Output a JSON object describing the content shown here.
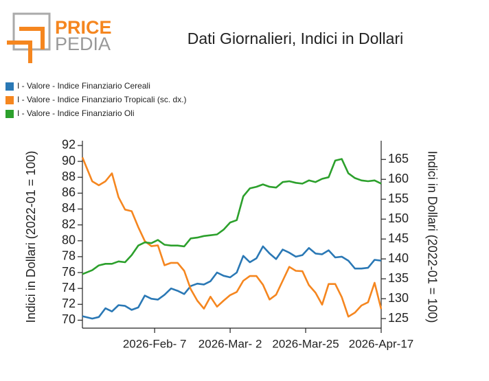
{
  "logo": {
    "line1": "PRICE",
    "line2": "PEDIA"
  },
  "chart_data": {
    "type": "line",
    "title": "Dati Giornalieri, Indici in Dollari",
    "y_label": "Indici in Dollari (2022-01 = 100)",
    "y2_label": "Indici in Dollari (2022-01 = 100)",
    "x": [
      "2026-01-16",
      "2026-01-19",
      "2026-01-21",
      "2026-01-23",
      "2026-01-25",
      "2026-01-27",
      "2026-01-29",
      "2026-01-31",
      "2026-02-02",
      "2026-02-04",
      "2026-02-06",
      "2026-02-08",
      "2026-02-10",
      "2026-02-12",
      "2026-02-14",
      "2026-02-16",
      "2026-02-18",
      "2026-02-20",
      "2026-02-22",
      "2026-02-24",
      "2026-02-26",
      "2026-02-28",
      "2026-03-02",
      "2026-03-04",
      "2026-03-06",
      "2026-03-08",
      "2026-03-10",
      "2026-03-12",
      "2026-03-14",
      "2026-03-16",
      "2026-03-18",
      "2026-03-20",
      "2026-03-22",
      "2026-03-24",
      "2026-03-26",
      "2026-03-28",
      "2026-03-30",
      "2026-04-01",
      "2026-04-03",
      "2026-04-05",
      "2026-04-07",
      "2026-04-09",
      "2026-04-11",
      "2026-04-13",
      "2026-04-15",
      "2026-04-17"
    ],
    "xlim": [
      "2026-01-16",
      "2026-04-17"
    ],
    "xticks": [
      {
        "value": "2026-02-07",
        "label": "2026-Feb- 7"
      },
      {
        "value": "2026-03-02",
        "label": "2026-Mar- 2"
      },
      {
        "value": "2026-03-25",
        "label": "2026-Mar-25"
      },
      {
        "value": "2026-04-17",
        "label": "2026-Apr-17"
      }
    ],
    "ylim": [
      69,
      92.6
    ],
    "yticks": [
      70,
      72,
      74,
      76,
      78,
      80,
      82,
      84,
      86,
      88,
      90,
      92
    ],
    "y2lim": [
      122.6,
      169.7
    ],
    "y2ticks": [
      125,
      130,
      135,
      140,
      145,
      150,
      155,
      160,
      165
    ],
    "legend": "top-left",
    "series": [
      {
        "name": "I - Valore - Indice Finanziario Cereali",
        "color": "#2a78b5",
        "values": [
          70.5,
          70.2,
          70.4,
          71.5,
          71.1,
          71.9,
          71.8,
          71.3,
          71.6,
          73.1,
          72.7,
          72.6,
          73.2,
          74.0,
          73.7,
          73.3,
          74.3,
          74.6,
          74.5,
          74.9,
          76.0,
          75.6,
          75.4,
          76.0,
          78.1,
          77.3,
          77.8,
          79.3,
          78.4,
          77.7,
          78.9,
          78.5,
          78.0,
          78.2,
          79.1,
          78.4,
          78.3,
          78.8,
          77.9,
          78.0,
          77.5,
          76.5,
          76.5,
          76.6,
          77.6,
          77.5
        ]
      },
      {
        "name": "I - Valore - Indice Finanziario Tropicali (sc. dx.)",
        "color": "#f5861f",
        "axis": "y2",
        "values": [
          165.5,
          159.5,
          158.5,
          159.5,
          161.5,
          155.5,
          152.4,
          152.0,
          148,
          144.5,
          143.2,
          143.4,
          138.4,
          139,
          139,
          137,
          132.4,
          129.5,
          127.5,
          130.5,
          128,
          129.5,
          130.9,
          131.7,
          134.5,
          135.7,
          135.7,
          133.5,
          129.8,
          131,
          134.5,
          138,
          137,
          136.9,
          133.4,
          131.5,
          128.5,
          133.7,
          133.7,
          130.4,
          125.5,
          126.5,
          128.3,
          129.1,
          134,
          127.4
        ]
      },
      {
        "name": "I - Valore - Indice Finanziario Oli",
        "color": "#2ca02c",
        "values": [
          75.8,
          76.3,
          76.9,
          77.1,
          77.1,
          77.4,
          77.3,
          78.2,
          79.4,
          79.8,
          79.7,
          80.1,
          79.5,
          79.4,
          79.4,
          79.3,
          80.3,
          80.4,
          80.6,
          80.7,
          80.8,
          81.4,
          82.3,
          82.6,
          85.6,
          86.6,
          86.8,
          87.1,
          86.8,
          86.7,
          87.4,
          87.5,
          87.3,
          87.2,
          87.6,
          87.4,
          87.8,
          88.0,
          90.1,
          90.3,
          88.5,
          87.9,
          87.6,
          87.5,
          87.6,
          87.2
        ]
      }
    ]
  }
}
